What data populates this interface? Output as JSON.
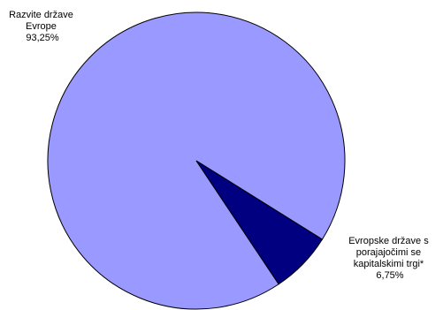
{
  "chart_data": {
    "type": "pie",
    "title": "",
    "slices": [
      {
        "label_lines": [
          "Razvite države",
          "Evrope"
        ],
        "value": 93.25,
        "value_label": "93,25%",
        "color": "#9999ff"
      },
      {
        "label_lines": [
          "Evropske države s",
          "porajajočimi se",
          "kapitalskimi trgi*"
        ],
        "value": 6.75,
        "value_label": "6,75%",
        "color": "#000080"
      }
    ],
    "legend": "none",
    "start_angle_clockwise_from_east_deg": 32
  }
}
